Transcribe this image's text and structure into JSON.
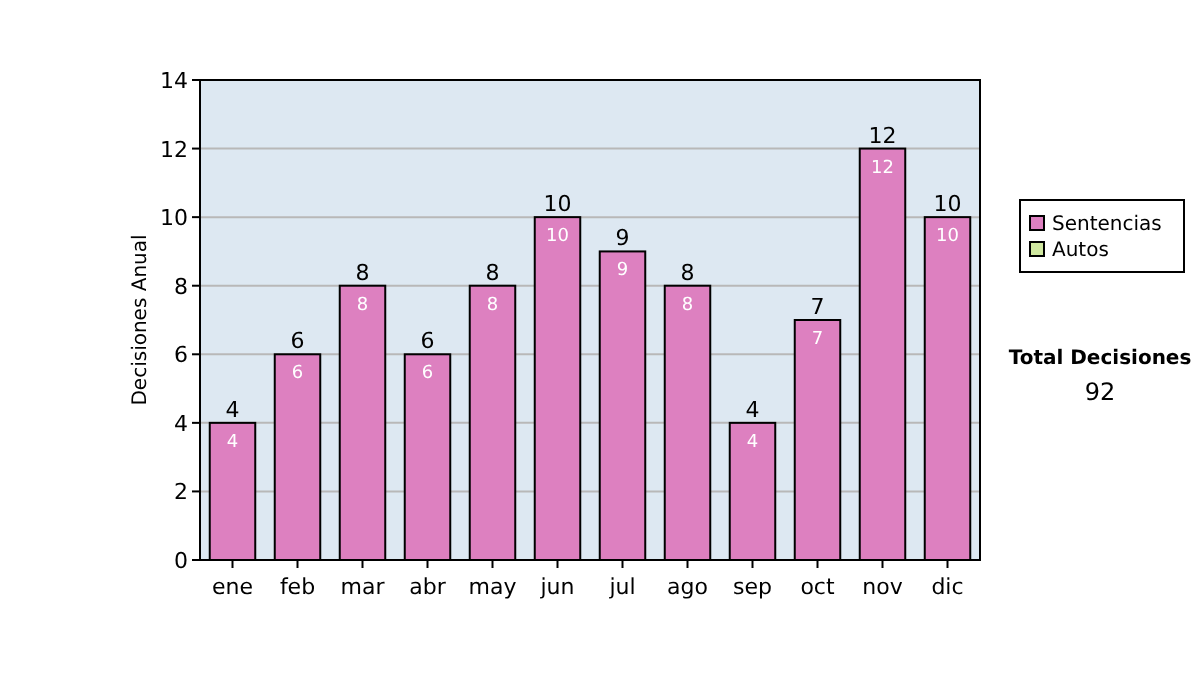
{
  "chart_data": {
    "type": "bar",
    "stacked": true,
    "ylabel": "Decisiones Anual",
    "categories": [
      "ene",
      "feb",
      "mar",
      "abr",
      "may",
      "jun",
      "jul",
      "ago",
      "sep",
      "oct",
      "nov",
      "dic"
    ],
    "series": [
      {
        "name": "Sentencias",
        "color": "#dd80c0",
        "values": [
          4,
          6,
          8,
          6,
          8,
          10,
          9,
          8,
          4,
          7,
          12,
          10
        ],
        "value_labels": [
          "4",
          "6",
          "8",
          "6",
          "8",
          "10",
          "9",
          "8",
          "4",
          "7",
          "12",
          "10"
        ]
      },
      {
        "name": "Autos",
        "color": "#d0e8a0",
        "values": [
          0,
          0,
          0,
          0,
          0,
          0,
          0,
          0,
          0,
          0,
          0,
          0
        ]
      }
    ],
    "totals": [
      "4",
      "6",
      "8",
      "6",
      "8",
      "10",
      "9",
      "8",
      "4",
      "7",
      "12",
      "10"
    ],
    "ylim": [
      0,
      14
    ],
    "yticks": [
      0,
      2,
      4,
      6,
      8,
      10,
      12,
      14
    ],
    "grid": "y",
    "legend": "right",
    "annotations": [
      "Total Decisiones",
      "92"
    ]
  }
}
